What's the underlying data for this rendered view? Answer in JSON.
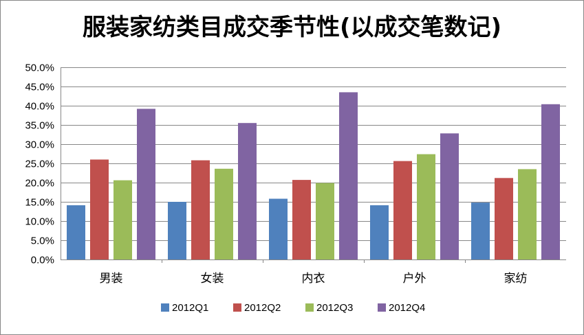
{
  "chart_data": {
    "type": "bar",
    "title": "服装家纺类目成交季节性(以成交笔数记)",
    "categories": [
      "男装",
      "女装",
      "内衣",
      "户外",
      "家纺"
    ],
    "series": [
      {
        "name": "2012Q1",
        "color": "#4F81BD",
        "values": [
          14.1,
          15.0,
          15.8,
          14.1,
          14.8
        ]
      },
      {
        "name": "2012Q2",
        "color": "#C0504D",
        "values": [
          26.0,
          25.8,
          20.7,
          25.6,
          21.2
        ]
      },
      {
        "name": "2012Q3",
        "color": "#9BBB59",
        "values": [
          20.6,
          23.6,
          19.9,
          27.4,
          23.5
        ]
      },
      {
        "name": "2012Q4",
        "color": "#8064A2",
        "values": [
          39.2,
          35.5,
          43.5,
          32.8,
          40.4
        ]
      }
    ],
    "y_ticks": [
      "0.0%",
      "5.0%",
      "10.0%",
      "15.0%",
      "20.0%",
      "25.0%",
      "30.0%",
      "35.0%",
      "40.0%",
      "45.0%",
      "50.0%"
    ],
    "ylim": [
      0,
      50
    ],
    "y_unit": "%",
    "grid": true,
    "legend_position": "bottom",
    "gridline_color": "#868686",
    "axis_color": "#868686"
  }
}
